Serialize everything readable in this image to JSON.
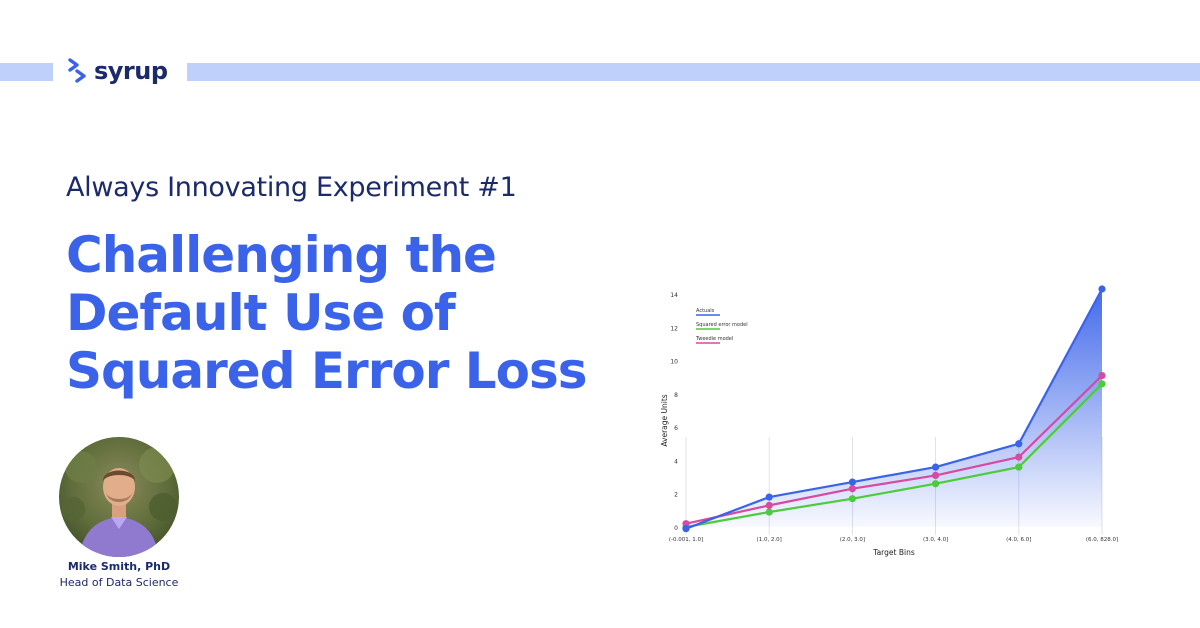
{
  "brand": {
    "name": "syrup",
    "logo_icon": "syrup-logo-icon",
    "colors": {
      "navy": "#1b2a6b",
      "blue": "#3a63ea",
      "band": "#bfd0fb"
    }
  },
  "hero": {
    "eyebrow": "Always Innovating Experiment #1",
    "title_lines": [
      "Challenging the",
      "Default Use of",
      "Squared Error Loss"
    ]
  },
  "author": {
    "name": "Mike Smith, PhD",
    "role": "Head of Data Science",
    "avatar_icon": "author-photo"
  },
  "chart_data": {
    "type": "line",
    "title": "",
    "xlabel": "Target Bins",
    "ylabel": "Average Units",
    "categories": [
      "(-0.001, 1.0]",
      "(1.0, 2.0]",
      "(2.0, 3.0]",
      "(3.0, 4.0]",
      "(4.0, 6.0]",
      "(6.0, 828.0]"
    ],
    "ylim": [
      0,
      14
    ],
    "yticks": [
      0,
      2,
      4,
      6,
      8,
      10,
      12,
      14
    ],
    "grid": false,
    "legend_position": "top-left",
    "series": [
      {
        "name": "Actuals",
        "color": "#3a63ea",
        "values": [
          -0.1,
          1.8,
          2.7,
          3.6,
          5.0,
          14.3
        ],
        "filled": true
      },
      {
        "name": "Squared error model",
        "color": "#4ccb3c",
        "values": [
          0.0,
          0.9,
          1.7,
          2.6,
          3.6,
          8.6
        ]
      },
      {
        "name": "Tweedie model",
        "color": "#d64aa2",
        "values": [
          0.2,
          1.3,
          2.3,
          3.1,
          4.2,
          9.1
        ]
      }
    ]
  }
}
